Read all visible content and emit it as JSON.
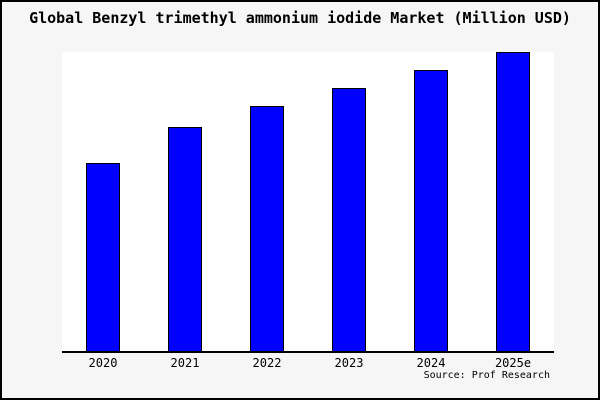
{
  "title": "Global Benzyl trimethyl ammonium iodide Market (Million USD)",
  "source": "Source: Prof Research",
  "colors": {
    "bar_fill": "#0000ff",
    "bar_border": "#000000",
    "plot_bg": "#ffffff",
    "canvas_bg": "#f6f6f6",
    "axis": "#000000",
    "frame_border": "#000000",
    "text": "#000000"
  },
  "chart_data": {
    "type": "bar",
    "title": "Global Benzyl trimethyl ammonium iodide Market (Million USD)",
    "categories": [
      "2020",
      "2021",
      "2022",
      "2023",
      "2024",
      "2025e"
    ],
    "values": [
      63,
      75,
      82,
      88,
      94,
      100
    ],
    "xlabel": "",
    "ylabel": "",
    "ylim": [
      0,
      100
    ],
    "value_scale": "relative height, tallest bar (2025e) = 100; no y-axis or data labels shown",
    "grid": false,
    "legend": false,
    "y_axis_shown": false,
    "annotation": "Source: Prof Research"
  }
}
